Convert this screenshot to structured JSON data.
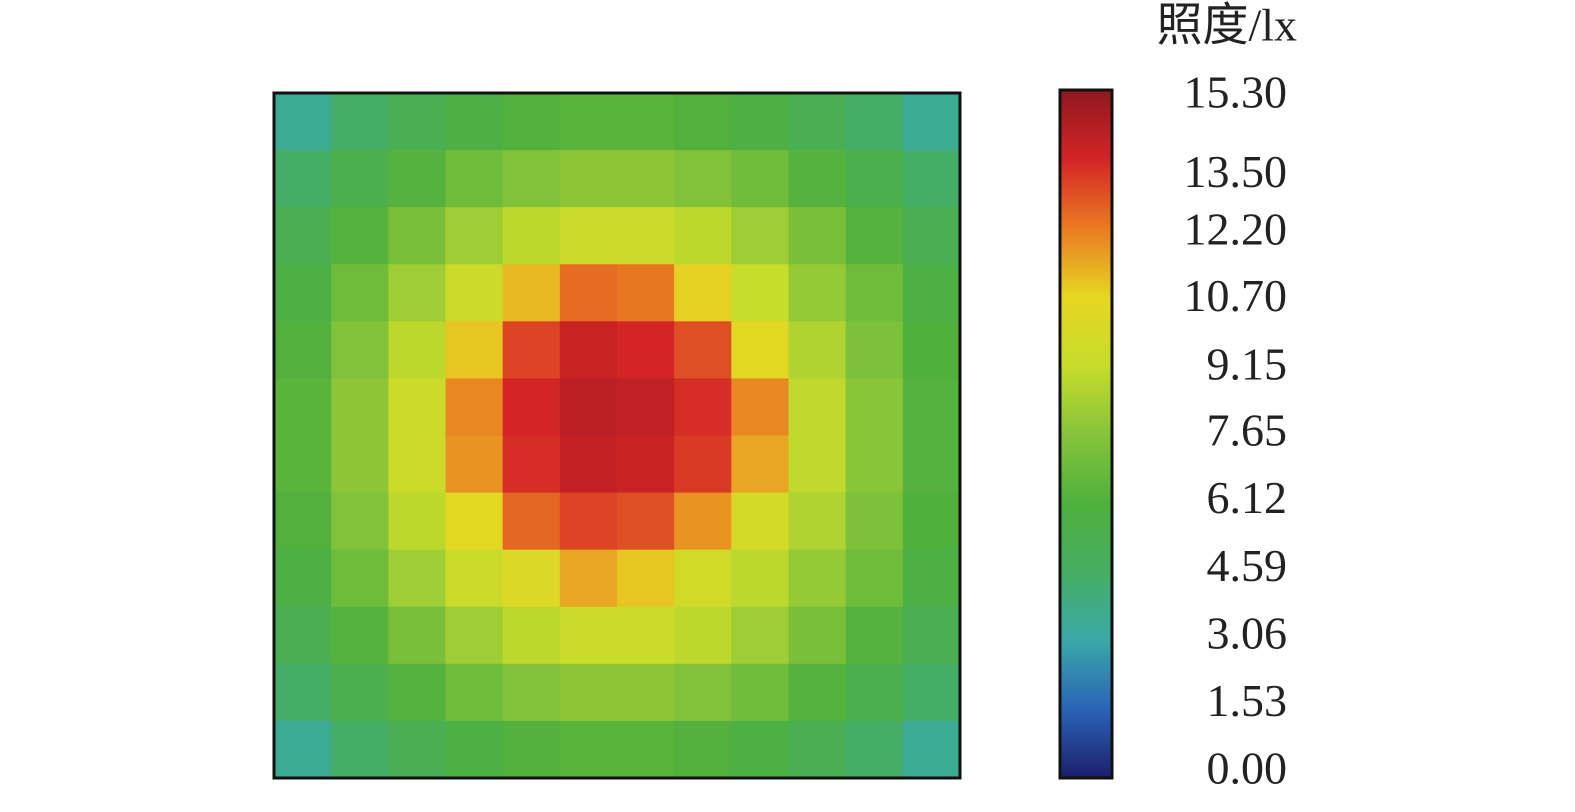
{
  "chart_data": {
    "type": "heatmap",
    "colorbar_title": "照度/lx",
    "zlim": [
      0,
      15.3
    ],
    "colormap": [
      "#1c1f6b",
      "#2a63b8",
      "#3aa8a8",
      "#46ae62",
      "#4fb03c",
      "#86c43a",
      "#c8dc2a",
      "#e6d622",
      "#ea7a22",
      "#d42426",
      "#8e1820"
    ],
    "colorbar_ticks": [
      {
        "value": 0,
        "label": "0.00"
      },
      {
        "value": 1.53,
        "label": "1.53"
      },
      {
        "value": 3.06,
        "label": "3.06"
      },
      {
        "value": 4.59,
        "label": "4.59"
      },
      {
        "value": 6.12,
        "label": "6.12"
      },
      {
        "value": 7.65,
        "label": "7.65"
      },
      {
        "value": 9.15,
        "label": "9.15"
      },
      {
        "value": 10.7,
        "label": "10.70"
      },
      {
        "value": 12.2,
        "label": "12.20"
      },
      {
        "value": 13.5,
        "label": "13.50"
      },
      {
        "value": 15.3,
        "label": "15.30"
      }
    ],
    "z": [
      [
        3.5,
        4.5,
        5.2,
        5.8,
        6.2,
        6.4,
        6.4,
        6.2,
        5.8,
        5.2,
        4.5,
        3.5
      ],
      [
        4.5,
        5.5,
        6.3,
        7.0,
        7.5,
        7.8,
        7.8,
        7.5,
        7.0,
        6.3,
        5.5,
        4.5
      ],
      [
        5.2,
        6.3,
        7.3,
        8.2,
        8.9,
        9.3,
        9.3,
        8.9,
        8.2,
        7.3,
        6.3,
        5.2
      ],
      [
        5.8,
        7.0,
        8.2,
        9.4,
        11.2,
        12.5,
        12.3,
        10.8,
        9.2,
        8.0,
        7.0,
        5.8
      ],
      [
        6.2,
        7.5,
        8.9,
        11.0,
        13.2,
        14.0,
        13.8,
        13.0,
        10.5,
        8.6,
        7.4,
        6.1
      ],
      [
        6.4,
        7.8,
        9.3,
        12.0,
        13.8,
        14.3,
        14.2,
        13.6,
        12.0,
        9.0,
        7.7,
        6.3
      ],
      [
        6.4,
        7.8,
        9.3,
        11.8,
        13.6,
        14.1,
        14.0,
        13.4,
        11.5,
        9.0,
        7.7,
        6.3
      ],
      [
        6.2,
        7.5,
        8.9,
        10.5,
        12.6,
        13.2,
        13.0,
        11.8,
        9.8,
        8.6,
        7.4,
        6.1
      ],
      [
        5.8,
        7.0,
        8.2,
        9.3,
        10.2,
        11.5,
        11.0,
        9.6,
        8.9,
        8.0,
        7.0,
        5.8
      ],
      [
        5.2,
        6.3,
        7.3,
        8.2,
        8.9,
        9.3,
        9.3,
        8.9,
        8.2,
        7.3,
        6.3,
        5.2
      ],
      [
        4.5,
        5.5,
        6.3,
        7.0,
        7.5,
        7.8,
        7.8,
        7.5,
        7.0,
        6.3,
        5.5,
        4.5
      ],
      [
        3.5,
        4.5,
        5.2,
        5.8,
        6.2,
        6.4,
        6.4,
        6.2,
        5.8,
        5.2,
        4.5,
        3.5
      ]
    ]
  }
}
